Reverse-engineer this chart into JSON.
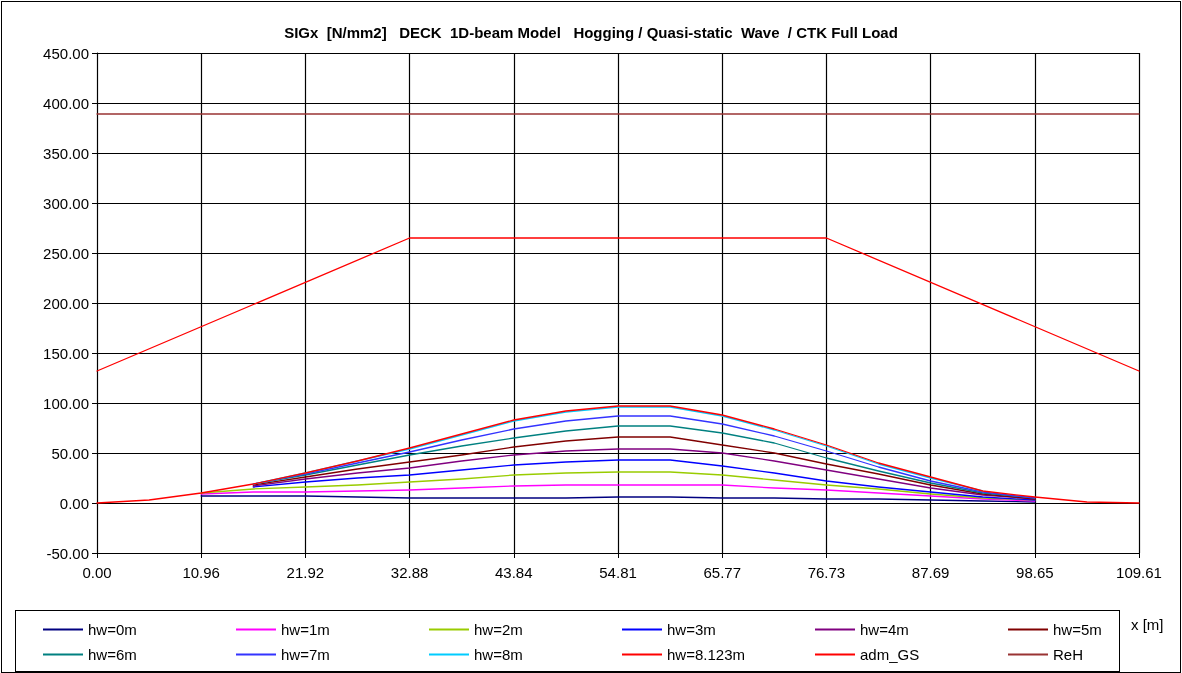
{
  "chart_data": {
    "type": "line",
    "title": "SIGx  [N/mm2]   DECK  1D-beam Model   Hogging / Quasi-static  Wave  / CTK Full Load",
    "xlabel": "x [m]",
    "x": [
      0,
      5.48,
      10.96,
      16.44,
      21.92,
      27.4,
      32.88,
      38.36,
      43.84,
      49.32,
      54.81,
      60.29,
      65.77,
      71.25,
      76.73,
      82.21,
      87.69,
      93.17,
      98.65,
      104.13,
      109.61
    ],
    "series": [
      {
        "name": "hw=0m",
        "color": "#000080",
        "values": [
          null,
          null,
          7,
          7,
          7,
          6,
          5,
          5,
          5,
          5,
          6,
          6,
          5,
          5,
          4,
          4,
          3,
          2,
          1,
          null,
          null
        ]
      },
      {
        "name": "hw=1m",
        "color": "#ff00ff",
        "values": [
          null,
          null,
          9,
          11,
          11,
          12,
          13,
          15,
          17,
          18,
          18,
          18,
          18,
          15,
          13,
          10,
          7,
          4,
          2,
          null,
          null
        ]
      },
      {
        "name": "hw=2m",
        "color": "#99cc00",
        "values": [
          null,
          null,
          10,
          14,
          16,
          18,
          21,
          24,
          28,
          30,
          31,
          31,
          28,
          23,
          18,
          14,
          9,
          5,
          3,
          null,
          null
        ]
      },
      {
        "name": "hw=3m",
        "color": "#0000ff",
        "values": [
          null,
          null,
          null,
          16,
          21,
          25,
          28,
          33,
          38,
          41,
          43,
          43,
          37,
          30,
          22,
          16,
          11,
          6,
          3,
          null,
          null
        ]
      },
      {
        "name": "hw=4m",
        "color": "#800080",
        "values": [
          null,
          null,
          null,
          17,
          24,
          30,
          35,
          42,
          48,
          52,
          54,
          54,
          50,
          42,
          33,
          24,
          15,
          8,
          4,
          null,
          null
        ]
      },
      {
        "name": "hw=5m",
        "color": "#800000",
        "values": [
          null,
          null,
          null,
          18,
          26,
          34,
          41,
          48,
          56,
          62,
          66,
          66,
          58,
          50,
          39,
          29,
          18,
          9,
          4,
          null,
          null
        ]
      },
      {
        "name": "hw=6m",
        "color": "#008080",
        "values": [
          null,
          null,
          null,
          19,
          28,
          38,
          48,
          57,
          65,
          72,
          77,
          77,
          70,
          60,
          45,
          32,
          20,
          10,
          5,
          null,
          null
        ]
      },
      {
        "name": "hw=7m",
        "color": "#3333ff",
        "values": [
          null,
          null,
          null,
          19,
          29,
          40,
          51,
          63,
          74,
          82,
          87,
          87,
          79,
          67,
          52,
          36,
          22,
          11,
          5,
          null,
          null
        ]
      },
      {
        "name": "hw=8m",
        "color": "#00ccff",
        "values": [
          null,
          null,
          null,
          19,
          30,
          42,
          54,
          68,
          82,
          91,
          96,
          96,
          87,
          73,
          57,
          39,
          25,
          12,
          null,
          null,
          null
        ]
      },
      {
        "name": "hw=8.123m",
        "color": "#ff0000",
        "values": [
          0,
          3,
          10,
          19,
          30,
          42,
          55,
          69,
          83,
          92,
          97,
          97,
          88,
          74,
          58,
          40,
          26,
          12,
          6,
          1,
          0
        ]
      },
      {
        "name": "adm_GS",
        "color": "#ff0000",
        "x": [
          0,
          32.88,
          76.73,
          109.61
        ],
        "values": [
          132,
          265,
          265,
          132
        ]
      },
      {
        "name": "ReH",
        "color": "#993333",
        "x": [
          0,
          109.61
        ],
        "values": [
          389,
          389
        ]
      }
    ],
    "xlim": [
      0,
      109.61
    ],
    "xticks": [
      {
        "value": 0,
        "label": "0.00"
      },
      10.96,
      21.92,
      32.88,
      43.84,
      54.81,
      65.77,
      76.73,
      87.69,
      98.65,
      109.61
    ],
    "ylim": [
      -50,
      450
    ],
    "yticks": [
      {
        "value": -50,
        "label": "-50.00"
      },
      {
        "value": 0,
        "label": "0.00"
      },
      {
        "value": 50,
        "label": "50.00"
      },
      {
        "value": 100,
        "label": "100.00"
      },
      {
        "value": 150,
        "label": "150.00"
      },
      {
        "value": 200,
        "label": "200.00"
      },
      {
        "value": 250,
        "label": "250.00"
      },
      {
        "value": 300,
        "label": "300.00"
      },
      {
        "value": 350,
        "label": "350.00"
      },
      {
        "value": 400,
        "label": "400.00"
      },
      {
        "value": 450,
        "label": "450.00"
      }
    ],
    "grid": true,
    "legend": "bottom",
    "marker": "none",
    "line_style": "solid"
  }
}
